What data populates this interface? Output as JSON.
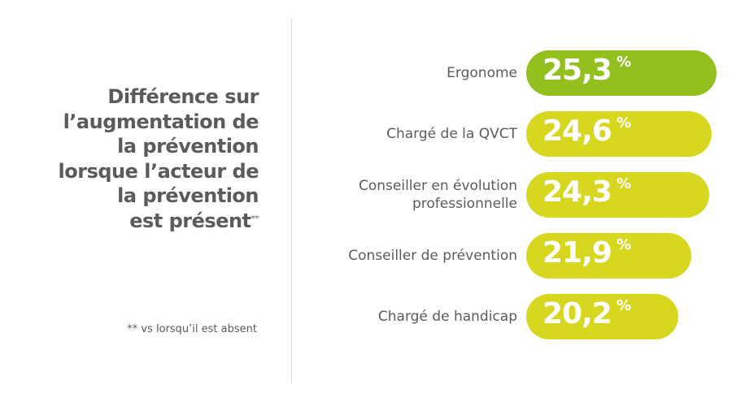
{
  "chart_data": {
    "type": "bar",
    "orientation": "horizontal",
    "title_lines": [
      "Différence sur",
      "l’augmentation de",
      "la prévention",
      "lorsque l’acteur de",
      "la prévention",
      "est présent"
    ],
    "title_mark": "**",
    "footnote": "** vs lorsqu’il est absent",
    "categories": [
      "Ergonome",
      "Chargé de la QVCT",
      "Conseiller en évolution professionnelle",
      "Conseiller de prévention",
      "Chargé de handicap"
    ],
    "values": [
      25.3,
      24.6,
      24.3,
      21.9,
      20.2
    ],
    "data_labels": [
      "25,3",
      "24,6",
      "24,3",
      "21,9",
      "20,2"
    ],
    "unit": "%",
    "colors": [
      "#93c01f",
      "#d8d720",
      "#d8d720",
      "#d8d720",
      "#d8d720"
    ],
    "grid": false,
    "legend": "none"
  }
}
